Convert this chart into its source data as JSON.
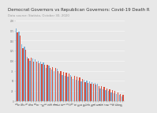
{
  "title": "Democrat Governors vs Republican Governors: Covid-19 Death R",
  "subtitle": "Data source: Statista, October 30, 2020",
  "title_fontsize": 4.0,
  "subtitle_fontsize": 2.8,
  "bar_color_dem": "#7bafd4",
  "bar_color_rep": "#d94f3d",
  "background_color": "#e8e8e8",
  "states": [
    "NJ",
    "NY",
    "MA",
    "CT",
    "RI",
    "MS",
    "LA",
    "MI",
    "PA",
    "IL",
    "MD",
    "IN",
    "DE",
    "OH",
    "GA",
    "VA",
    "SC",
    "AZ",
    "FL",
    "TX",
    "CO",
    "TN",
    "NC",
    "MO",
    "AL",
    "NM",
    "NV",
    "WI",
    "MN",
    "CA",
    "KY",
    "AR",
    "OK",
    "UT",
    "KS",
    "ID",
    "ND",
    "SD",
    "MT",
    "WY"
  ],
  "party": [
    "D",
    "D",
    "D",
    "D",
    "D",
    "R",
    "D",
    "D",
    "D",
    "D",
    "D",
    "R",
    "D",
    "R",
    "R",
    "D",
    "R",
    "R",
    "R",
    "R",
    "D",
    "R",
    "R",
    "R",
    "R",
    "D",
    "D",
    "D",
    "D",
    "D",
    "D",
    "R",
    "R",
    "R",
    "R",
    "R",
    "R",
    "R",
    "R",
    "R"
  ],
  "values_blue": [
    180,
    172,
    140,
    135,
    110,
    100,
    105,
    103,
    100,
    98,
    95,
    82,
    88,
    78,
    75,
    80,
    68,
    65,
    63,
    61,
    65,
    55,
    53,
    51,
    48,
    52,
    50,
    48,
    47,
    45,
    42,
    32,
    30,
    28,
    26,
    22,
    20,
    18,
    15,
    12
  ],
  "values_red": [
    170,
    162,
    132,
    128,
    105,
    108,
    98,
    97,
    94,
    92,
    89,
    90,
    82,
    85,
    82,
    75,
    75,
    72,
    70,
    68,
    60,
    62,
    60,
    58,
    55,
    47,
    45,
    43,
    42,
    40,
    38,
    38,
    35,
    32,
    30,
    27,
    25,
    22,
    18,
    15
  ],
  "ylim": [
    0,
    200
  ]
}
